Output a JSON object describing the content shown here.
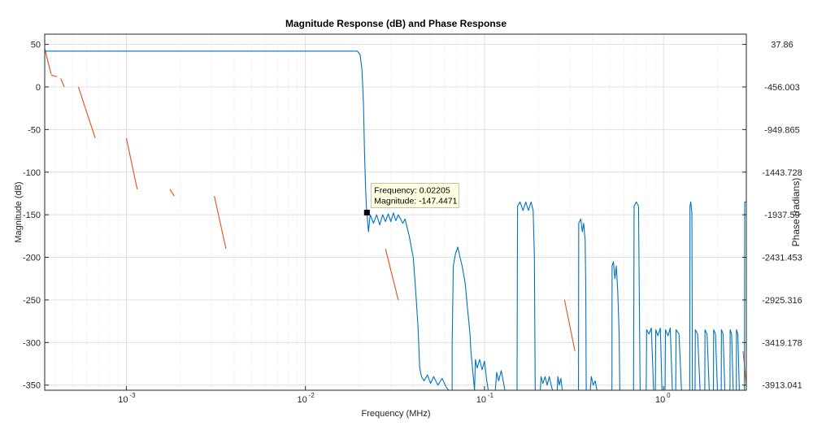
{
  "chart_data": {
    "type": "line",
    "title": "Magnitude Response (dB) and Phase Response",
    "xlabel": "Frequency (MHz)",
    "ylabel_left": "Magnitude (dB)",
    "ylabel_right": "Phase (radians)",
    "x_scale": "log",
    "xlim": [
      0.00035,
      2.9
    ],
    "x_ticks": [
      0.001,
      0.01,
      0.1,
      1
    ],
    "x_tick_labels": [
      {
        "base": "10",
        "exp": "-3"
      },
      {
        "base": "10",
        "exp": "-2"
      },
      {
        "base": "10",
        "exp": "-1"
      },
      {
        "base": "10",
        "exp": "0"
      }
    ],
    "ylim_left": [
      -356,
      62
    ],
    "y_ticks_left": [
      50,
      0,
      -50,
      -100,
      -150,
      -200,
      -250,
      -300,
      -350
    ],
    "y_tick_labels_left": [
      "50",
      "0",
      "-50",
      "-100",
      "-150",
      "-200",
      "-250",
      "-300",
      "-350"
    ],
    "y_ticks_right": [
      37.86,
      -456.003,
      -949.865,
      -1443.728,
      -1937.59,
      -2431.453,
      -2925.316,
      -3419.178,
      -3913.041
    ],
    "y_tick_labels_right": [
      "37.86",
      "-456.003",
      "-949.865",
      "-1443.728",
      "-1937.59",
      "-2431.453",
      "-2925.316",
      "-3419.178",
      "-3913.041"
    ],
    "grid": true,
    "minor_grid_x": true,
    "colors": {
      "magnitude": "#0072BD",
      "phase": "#D95319",
      "grid": "#dcdcdc",
      "axes": "#262626"
    },
    "series": [
      {
        "axis": "left",
        "color": "#0072BD",
        "points": [
          [
            0.00035,
            42
          ],
          [
            0.005,
            42
          ],
          [
            0.0195,
            42
          ],
          [
            0.0202,
            38
          ],
          [
            0.0207,
            20
          ],
          [
            0.0211,
            -20
          ],
          [
            0.0214,
            -80
          ],
          [
            0.0217,
            -120
          ],
          [
            0.0219,
            -140
          ],
          [
            0.02205,
            -147.4471
          ],
          [
            0.0225,
            -170
          ],
          [
            0.023,
            -150
          ],
          [
            0.024,
            -160
          ],
          [
            0.025,
            -150
          ],
          [
            0.026,
            -162
          ],
          [
            0.027,
            -150
          ],
          [
            0.028,
            -158
          ],
          [
            0.029,
            -149
          ],
          [
            0.03,
            -158
          ],
          [
            0.031,
            -148
          ],
          [
            0.032,
            -157
          ],
          [
            0.033,
            -150
          ],
          [
            0.035,
            -160
          ],
          [
            0.036,
            -155
          ],
          [
            0.038,
            -175
          ],
          [
            0.04,
            -200
          ],
          [
            0.041,
            -230
          ],
          [
            0.0425,
            -280
          ],
          [
            0.0435,
            -330
          ],
          [
            0.0445,
            -340
          ],
          [
            0.046,
            -345
          ],
          [
            0.048,
            -338
          ],
          [
            0.05,
            -348
          ],
          [
            0.052,
            -340
          ],
          [
            0.055,
            -350
          ],
          [
            0.058,
            -342
          ],
          [
            0.061,
            -352
          ],
          [
            0.063,
            -356
          ],
          [
            0.066,
            -356
          ],
          [
            0.066,
            -300
          ],
          [
            0.067,
            -210
          ],
          [
            0.069,
            -195
          ],
          [
            0.071,
            -188
          ],
          [
            0.073,
            -200
          ],
          [
            0.075,
            -210
          ],
          [
            0.078,
            -230
          ],
          [
            0.08,
            -255
          ],
          [
            0.083,
            -290
          ],
          [
            0.084,
            -310
          ],
          [
            0.088,
            -356
          ],
          [
            0.089,
            -320
          ],
          [
            0.091,
            -330
          ],
          [
            0.094,
            -320
          ],
          [
            0.097,
            -332
          ],
          [
            0.1,
            -322
          ],
          [
            0.103,
            -345
          ],
          [
            0.105,
            -356
          ],
          [
            0.115,
            -356
          ],
          [
            0.117,
            -335
          ],
          [
            0.12,
            -345
          ],
          [
            0.124,
            -333
          ],
          [
            0.128,
            -348
          ],
          [
            0.13,
            -356
          ],
          [
            0.152,
            -356
          ],
          [
            0.153,
            -140
          ],
          [
            0.158,
            -135
          ],
          [
            0.164,
            -145
          ],
          [
            0.17,
            -135
          ],
          [
            0.176,
            -145
          ],
          [
            0.182,
            -135
          ],
          [
            0.187,
            -145
          ],
          [
            0.19,
            -200
          ],
          [
            0.192,
            -356
          ],
          [
            0.205,
            -356
          ],
          [
            0.207,
            -340
          ],
          [
            0.212,
            -348
          ],
          [
            0.218,
            -340
          ],
          [
            0.224,
            -350
          ],
          [
            0.23,
            -340
          ],
          [
            0.236,
            -350
          ],
          [
            0.24,
            -356
          ],
          [
            0.255,
            -356
          ],
          [
            0.257,
            -340
          ],
          [
            0.262,
            -350
          ],
          [
            0.267,
            -342
          ],
          [
            0.272,
            -356
          ],
          [
            0.335,
            -356
          ],
          [
            0.336,
            -160
          ],
          [
            0.345,
            -155
          ],
          [
            0.352,
            -170
          ],
          [
            0.358,
            -160
          ],
          [
            0.365,
            -180
          ],
          [
            0.368,
            -240
          ],
          [
            0.37,
            -356
          ],
          [
            0.39,
            -356
          ],
          [
            0.395,
            -340
          ],
          [
            0.405,
            -350
          ],
          [
            0.415,
            -345
          ],
          [
            0.425,
            -356
          ],
          [
            0.515,
            -356
          ],
          [
            0.516,
            -210
          ],
          [
            0.525,
            -205
          ],
          [
            0.535,
            -225
          ],
          [
            0.545,
            -210
          ],
          [
            0.555,
            -240
          ],
          [
            0.565,
            -290
          ],
          [
            0.57,
            -356
          ],
          [
            0.68,
            -356
          ],
          [
            0.685,
            -140
          ],
          [
            0.705,
            -135
          ],
          [
            0.725,
            -140
          ],
          [
            0.74,
            -356
          ],
          [
            0.8,
            -356
          ],
          [
            0.805,
            -285
          ],
          [
            0.83,
            -290
          ],
          [
            0.855,
            -283
          ],
          [
            0.88,
            -356
          ],
          [
            0.9,
            -356
          ],
          [
            0.905,
            -285
          ],
          [
            0.93,
            -292
          ],
          [
            0.96,
            -283
          ],
          [
            0.98,
            -356
          ],
          [
            1.02,
            -356
          ],
          [
            1.025,
            -285
          ],
          [
            1.06,
            -292
          ],
          [
            1.09,
            -283
          ],
          [
            1.12,
            -356
          ],
          [
            1.17,
            -356
          ],
          [
            1.175,
            -285
          ],
          [
            1.22,
            -290
          ],
          [
            1.26,
            -356
          ],
          [
            1.4,
            -356
          ],
          [
            1.405,
            -140
          ],
          [
            1.42,
            -135
          ],
          [
            1.44,
            -148
          ],
          [
            1.45,
            -356
          ],
          [
            1.5,
            -356
          ],
          [
            1.505,
            -285
          ],
          [
            1.55,
            -290
          ],
          [
            1.6,
            -356
          ],
          [
            1.7,
            -356
          ],
          [
            1.705,
            -285
          ],
          [
            1.75,
            -290
          ],
          [
            1.8,
            -356
          ],
          [
            1.9,
            -356
          ],
          [
            1.905,
            -285
          ],
          [
            1.95,
            -290
          ],
          [
            2.0,
            -356
          ],
          [
            2.1,
            -356
          ],
          [
            2.105,
            -285
          ],
          [
            2.15,
            -290
          ],
          [
            2.2,
            -356
          ],
          [
            2.35,
            -356
          ],
          [
            2.355,
            -285
          ],
          [
            2.4,
            -290
          ],
          [
            2.45,
            -356
          ],
          [
            2.55,
            -356
          ],
          [
            2.555,
            -285
          ],
          [
            2.6,
            -290
          ],
          [
            2.65,
            -356
          ],
          [
            2.83,
            -356
          ],
          [
            2.84,
            -135
          ],
          [
            2.9,
            -135
          ]
        ]
      },
      {
        "axis": "left",
        "color": "#D95319",
        "segments": [
          [
            [
              0.00035,
              45
            ],
            [
              0.00038,
              15
            ]
          ],
          [
            [
              0.00038,
              14
            ],
            [
              0.00041,
              12
            ]
          ],
          [
            [
              0.00043,
              10
            ],
            [
              0.00045,
              0
            ]
          ],
          [
            [
              0.00054,
              0
            ],
            [
              0.00067,
              -60
            ]
          ],
          [
            [
              0.001,
              -60
            ],
            [
              0.00115,
              -120
            ]
          ],
          [
            [
              0.00175,
              -120
            ],
            [
              0.00185,
              -128
            ]
          ],
          [
            [
              0.0031,
              -128
            ],
            [
              0.0036,
              -190
            ]
          ],
          [
            [
              0.028,
              -190
            ],
            [
              0.033,
              -250
            ]
          ],
          [
            [
              0.28,
              -250
            ],
            [
              0.32,
              -310
            ]
          ],
          [
            [
              2.78,
              -310
            ],
            [
              2.9,
              -350
            ]
          ]
        ]
      }
    ],
    "datatip": {
      "x": 0.02205,
      "y": -147.4471,
      "line1": "Frequency: 0.02205",
      "line2": "Magnitude: -147.4471"
    }
  }
}
